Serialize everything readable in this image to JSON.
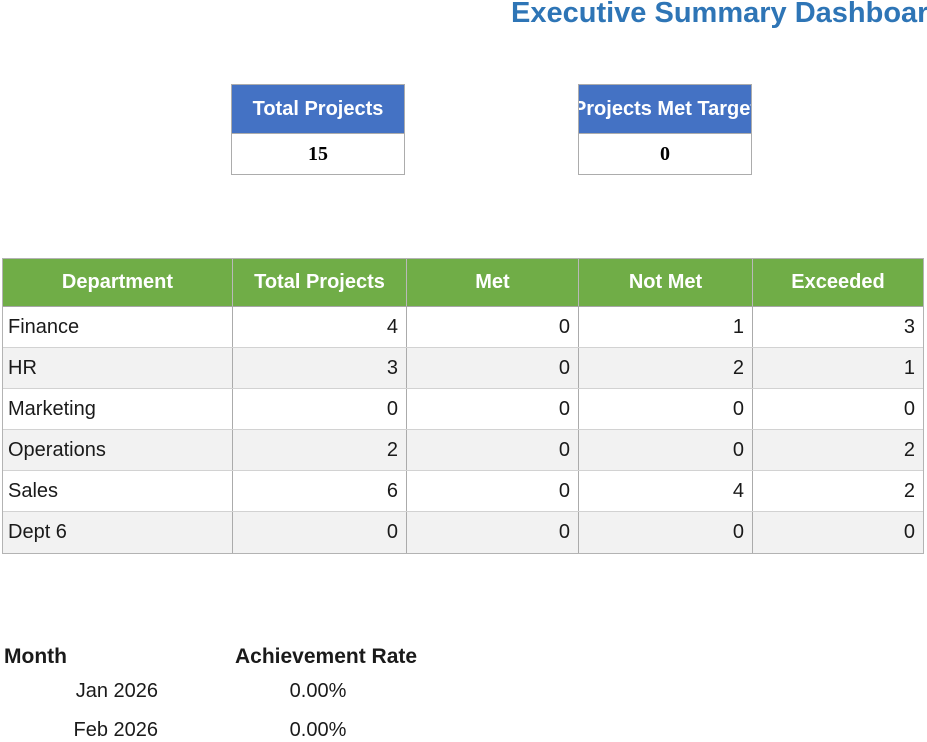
{
  "title": "Executive Summary Dashboard",
  "kpi_cards": [
    {
      "label": "Total Projects",
      "value": "15"
    },
    {
      "label": "Projects Met Target",
      "value": "0"
    }
  ],
  "summary_table": {
    "columns": [
      "Department",
      "Total Projects",
      "Met",
      "Not Met",
      "Exceeded"
    ],
    "rows": [
      {
        "cells": [
          "Finance",
          "4",
          "0",
          "1",
          "3"
        ]
      },
      {
        "cells": [
          "HR",
          "3",
          "0",
          "2",
          "1"
        ]
      },
      {
        "cells": [
          "Marketing",
          "0",
          "0",
          "0",
          "0"
        ]
      },
      {
        "cells": [
          "Operations",
          "2",
          "0",
          "0",
          "2"
        ]
      },
      {
        "cells": [
          "Sales",
          "6",
          "0",
          "4",
          "2"
        ]
      },
      {
        "cells": [
          "Dept 6",
          "0",
          "0",
          "0",
          "0"
        ]
      }
    ]
  },
  "monthly_rates": {
    "month_header": "Month",
    "rate_header": "Achievement Rate",
    "rows": [
      {
        "month": "Jan 2026",
        "rate": "0.00%"
      },
      {
        "month": "Feb 2026",
        "rate": "0.00%"
      }
    ]
  },
  "colors": {
    "title_blue": "#2E75B6",
    "kpi_header_blue": "#4472C4",
    "table_header_green": "#70AD47",
    "row_alt_gray": "#F2F2F2"
  }
}
